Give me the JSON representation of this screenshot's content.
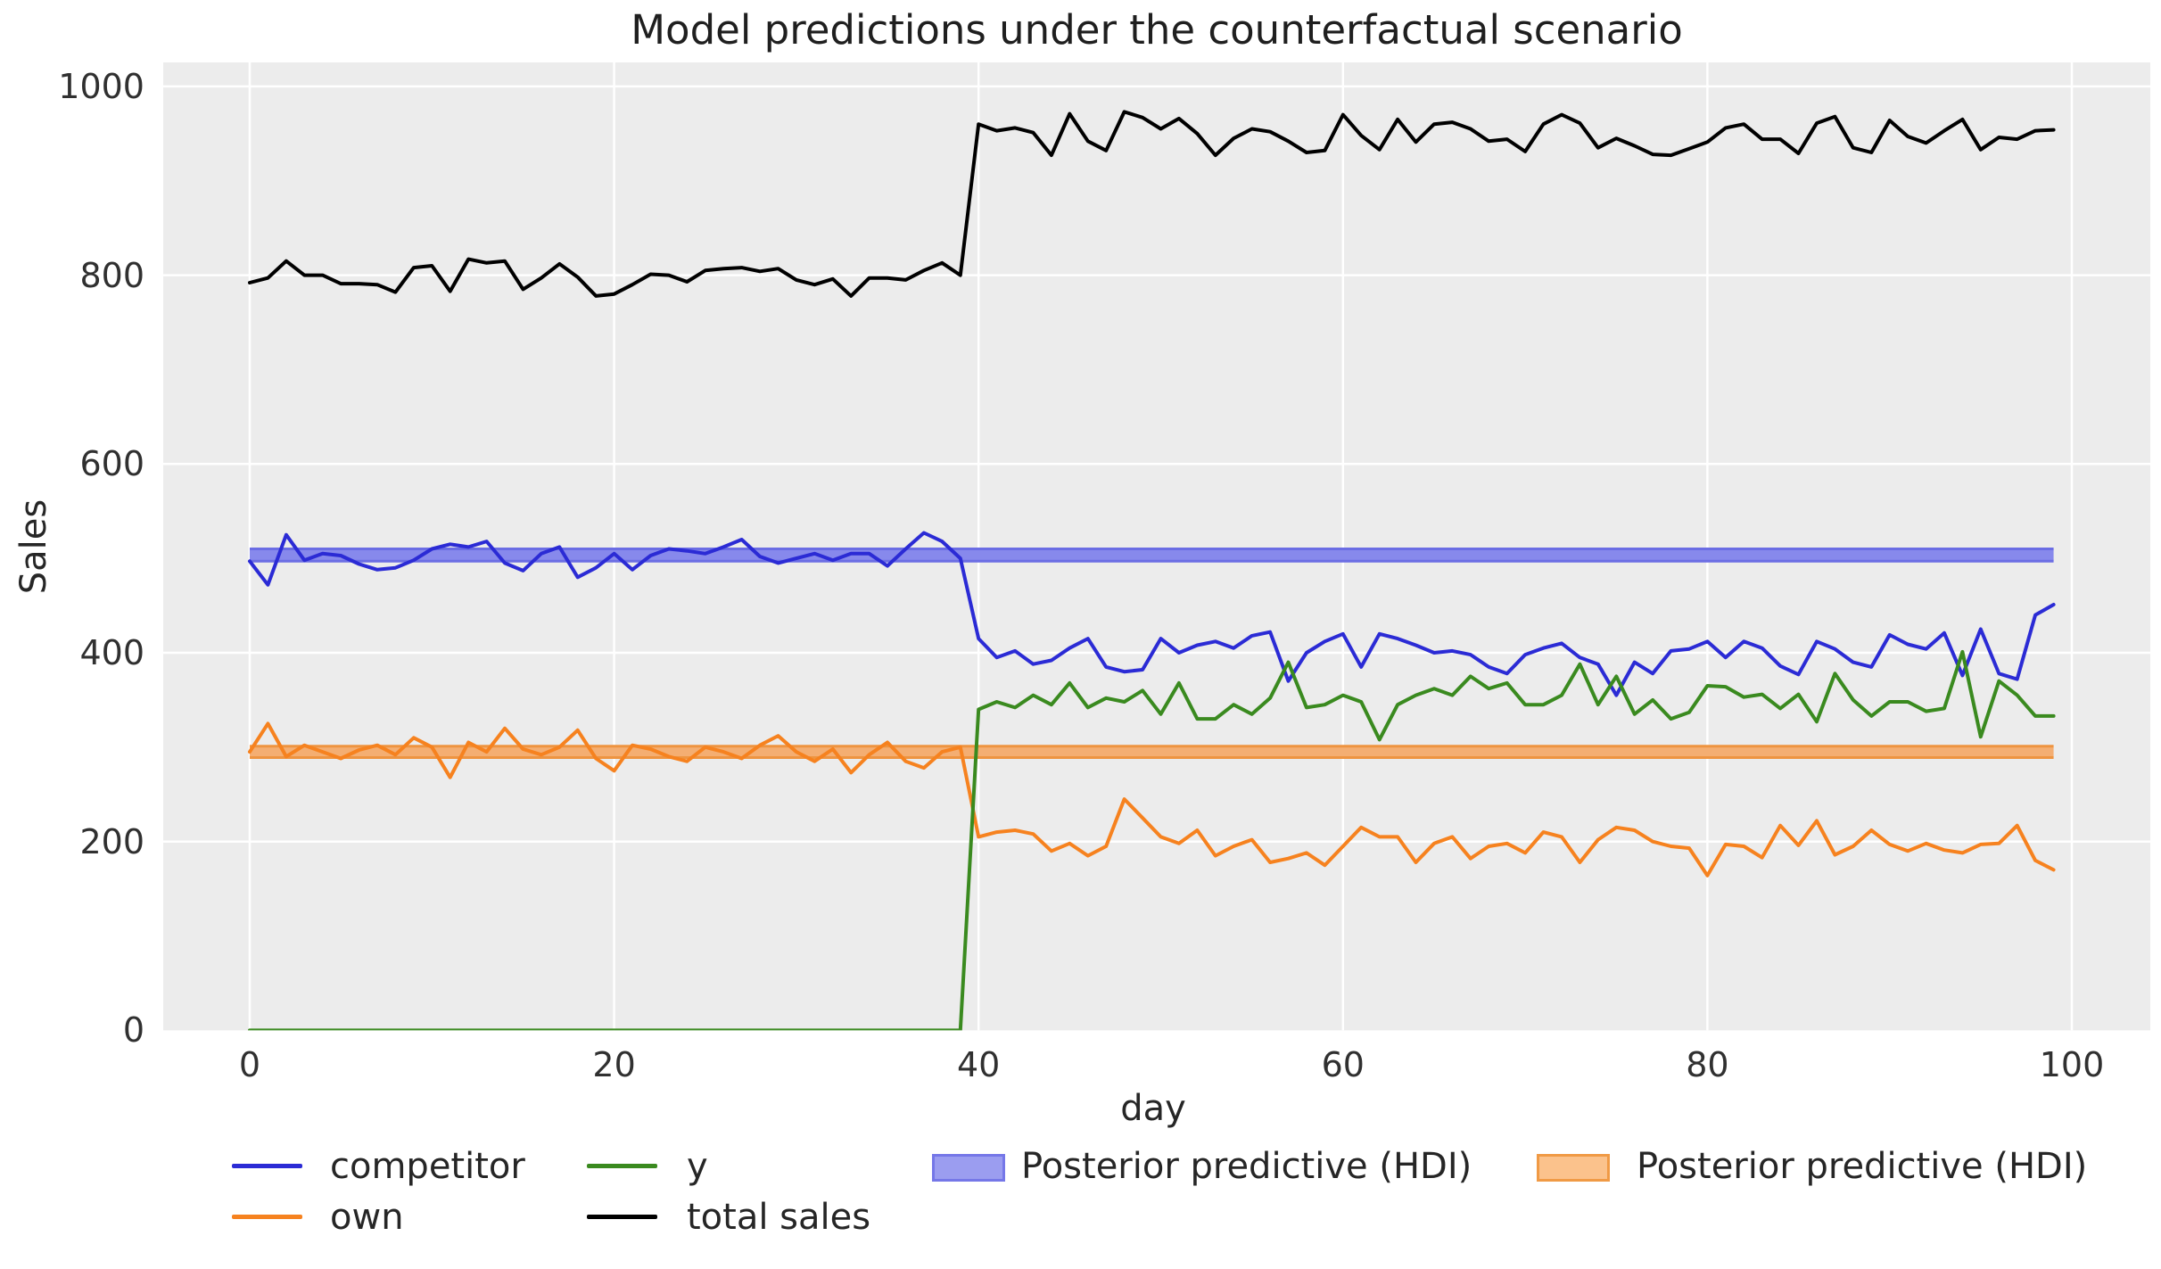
{
  "figure": {
    "background": "#ffffff",
    "plot_background": "#ececec",
    "grid_color": "#ffffff",
    "text_color": "#262626"
  },
  "chart_data": {
    "type": "line",
    "title": "Model predictions under the counterfactual scenario",
    "xlabel": "day",
    "ylabel": "Sales",
    "x_start": 0,
    "x_step": 1,
    "x_end": 99,
    "xlim": [
      -4.75,
      104.2
    ],
    "ylim": [
      0,
      1025
    ],
    "xticks": [
      0,
      20,
      40,
      60,
      80,
      100
    ],
    "yticks": [
      0,
      200,
      400,
      600,
      800,
      1000
    ],
    "grid": true,
    "legend_position": "below",
    "series": [
      {
        "name": "competitor",
        "color": "#2b2bd5",
        "values": [
          497,
          472,
          525,
          498,
          505,
          503,
          494,
          488,
          490,
          498,
          510,
          515,
          512,
          518,
          495,
          487,
          505,
          512,
          480,
          490,
          505,
          488,
          503,
          510,
          508,
          505,
          512,
          520,
          502,
          495,
          500,
          505,
          498,
          505,
          505,
          492,
          510,
          527,
          518,
          500,
          415,
          395,
          402,
          388,
          392,
          405,
          415,
          385,
          380,
          382,
          415,
          400,
          408,
          412,
          405,
          418,
          422,
          370,
          400,
          412,
          420,
          385,
          420,
          415,
          408,
          400,
          402,
          398,
          385,
          378,
          398,
          405,
          410,
          395,
          388,
          355,
          390,
          378,
          402,
          404,
          412,
          395,
          412,
          405,
          386,
          377,
          412,
          404,
          390,
          385,
          419,
          409,
          404,
          421,
          376,
          425,
          378,
          372,
          440,
          451
        ]
      },
      {
        "name": "own",
        "color": "#f6821f",
        "values": [
          295,
          325,
          290,
          302,
          295,
          288,
          297,
          302,
          292,
          310,
          300,
          268,
          305,
          295,
          320,
          298,
          292,
          300,
          318,
          288,
          275,
          302,
          298,
          290,
          285,
          300,
          295,
          288,
          302,
          312,
          295,
          285,
          298,
          273,
          292,
          305,
          285,
          278,
          295,
          300,
          205,
          210,
          212,
          208,
          190,
          198,
          185,
          195,
          245,
          225,
          205,
          198,
          212,
          185,
          195,
          202,
          178,
          182,
          188,
          175,
          195,
          215,
          205,
          205,
          178,
          198,
          205,
          182,
          195,
          198,
          188,
          210,
          205,
          178,
          202,
          215,
          212,
          200,
          195,
          193,
          164,
          197,
          195,
          183,
          217,
          196,
          222,
          186,
          195,
          212,
          197,
          190,
          198,
          191,
          188,
          197,
          198,
          217,
          180,
          170
        ]
      },
      {
        "name": "y",
        "color": "#3a8a1f",
        "values": [
          0,
          0,
          0,
          0,
          0,
          0,
          0,
          0,
          0,
          0,
          0,
          0,
          0,
          0,
          0,
          0,
          0,
          0,
          0,
          0,
          0,
          0,
          0,
          0,
          0,
          0,
          0,
          0,
          0,
          0,
          0,
          0,
          0,
          0,
          0,
          0,
          0,
          0,
          0,
          0,
          340,
          348,
          342,
          355,
          345,
          368,
          342,
          352,
          348,
          360,
          335,
          368,
          330,
          330,
          345,
          335,
          352,
          390,
          342,
          345,
          355,
          348,
          308,
          345,
          355,
          362,
          355,
          375,
          362,
          368,
          345,
          345,
          355,
          388,
          345,
          375,
          335,
          350,
          330,
          337,
          365,
          364,
          353,
          356,
          341,
          356,
          327,
          378,
          350,
          333,
          348,
          348,
          338,
          341,
          401,
          311,
          370,
          355,
          333,
          333
        ]
      },
      {
        "name": "total sales",
        "color": "#000000",
        "values": [
          792,
          797,
          815,
          800,
          800,
          791,
          791,
          790,
          782,
          808,
          810,
          783,
          817,
          813,
          815,
          785,
          797,
          812,
          798,
          778,
          780,
          790,
          801,
          800,
          793,
          805,
          807,
          808,
          804,
          807,
          795,
          790,
          796,
          778,
          797,
          797,
          795,
          805,
          813,
          800,
          960,
          953,
          956,
          951,
          927,
          971,
          942,
          932,
          973,
          967,
          955,
          966,
          950,
          927,
          945,
          955,
          952,
          942,
          930,
          932,
          970,
          948,
          933,
          965,
          941,
          960,
          962,
          955,
          942,
          944,
          931,
          960,
          970,
          961,
          935,
          945,
          937,
          928,
          927,
          934,
          941,
          956,
          960,
          944,
          944,
          929,
          961,
          968,
          935,
          930,
          964,
          947,
          940,
          953,
          965,
          933,
          946,
          944,
          953,
          954
        ]
      }
    ],
    "hdi_bands": [
      {
        "name": "Posterior predictive (HDI)",
        "series": "competitor",
        "lo": 497,
        "hi": 510,
        "x_start": 0,
        "x_end": 99,
        "fill": "#8789ec",
        "edge": "#6b6de4"
      },
      {
        "name": "Posterior predictive (HDI)",
        "series": "own",
        "lo": 289,
        "hi": 301,
        "x_start": 0,
        "x_end": 99,
        "fill": "#f4ae72",
        "edge": "#ee9440"
      }
    ]
  },
  "legend": {
    "items": [
      {
        "label": "competitor",
        "swatch": "line",
        "color": "#2b2bd5"
      },
      {
        "label": "own",
        "swatch": "line",
        "color": "#f6821f"
      },
      {
        "label": "y",
        "swatch": "line",
        "color": "#3a8a1f"
      },
      {
        "label": "total sales",
        "swatch": "line",
        "color": "#000000"
      },
      {
        "label": "Posterior predictive (HDI)",
        "swatch": "patch",
        "fill": "#9b9df0",
        "edge": "#7577e8"
      },
      {
        "label": "Posterior predictive (HDI)",
        "swatch": "patch",
        "fill": "#fbc28c",
        "edge": "#f09a45"
      }
    ]
  }
}
